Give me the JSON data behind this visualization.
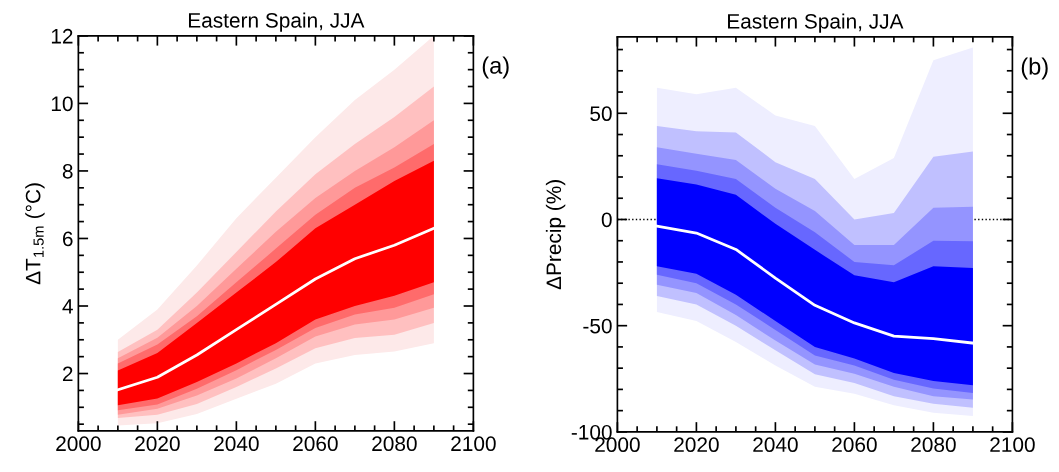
{
  "chart_data": [
    {
      "type": "line",
      "title": "Eastern Spain, JJA",
      "ylabel": "ΔT$_{1.5m}$ (°C)",
      "annotations": [
        "(a)"
      ],
      "x": [
        2010,
        2020,
        2030,
        2040,
        2050,
        2060,
        2070,
        2080,
        2090
      ],
      "xlim": [
        2000,
        2100
      ],
      "xticks": [
        2000,
        2020,
        2040,
        2060,
        2080,
        2100
      ],
      "ylim": [
        0.3,
        12
      ],
      "yticks": [
        2,
        4,
        6,
        8,
        10,
        12
      ],
      "grid": false,
      "legend": false,
      "line_style": "solid",
      "marker": "none",
      "series": [
        {
          "color": "#fde9e9",
          "values": [
            null,
            null,
            null,
            null,
            null,
            null,
            null,
            null,
            null
          ],
          "lower": [
            0.46,
            0.53,
            0.8,
            1.25,
            1.7,
            2.3,
            2.55,
            2.65,
            2.9
          ],
          "upper": [
            3.0,
            3.9,
            5.2,
            6.6,
            7.8,
            9.0,
            10.1,
            11.0,
            12.0
          ]
        },
        {
          "color": "#ffc0c0",
          "values": [
            null,
            null,
            null,
            null,
            null,
            null,
            null,
            null,
            null
          ],
          "lower": [
            0.68,
            0.78,
            1.1,
            1.6,
            2.15,
            2.75,
            3.05,
            3.15,
            3.5
          ],
          "upper": [
            2.64,
            3.3,
            4.4,
            5.6,
            6.8,
            7.9,
            8.8,
            9.6,
            10.5
          ]
        },
        {
          "color": "#ff9999",
          "values": [
            null,
            null,
            null,
            null,
            null,
            null,
            null,
            null,
            null
          ],
          "lower": [
            0.78,
            0.96,
            1.35,
            1.85,
            2.45,
            3.1,
            3.45,
            3.6,
            3.95
          ],
          "upper": [
            2.45,
            3.06,
            4.0,
            5.1,
            6.2,
            7.2,
            8.0,
            8.7,
            9.5
          ]
        },
        {
          "color": "#ff6b6b",
          "values": [
            null,
            null,
            null,
            null,
            null,
            null,
            null,
            null,
            null
          ],
          "lower": [
            0.91,
            1.08,
            1.55,
            2.1,
            2.7,
            3.35,
            3.75,
            3.95,
            4.35
          ],
          "upper": [
            2.3,
            2.86,
            3.7,
            4.7,
            5.7,
            6.7,
            7.5,
            8.1,
            8.8
          ]
        },
        {
          "color": "#ff0000",
          "values": [
            null,
            null,
            null,
            null,
            null,
            null,
            null,
            null,
            null
          ],
          "lower": [
            1.06,
            1.26,
            1.75,
            2.3,
            2.9,
            3.6,
            4.0,
            4.3,
            4.7
          ],
          "upper": [
            2.09,
            2.61,
            3.5,
            4.4,
            5.3,
            6.3,
            7.0,
            7.7,
            8.3
          ]
        },
        {
          "color": "#ffffff",
          "values": [
            1.52,
            1.89,
            2.55,
            3.3,
            4.05,
            4.8,
            5.4,
            5.8,
            6.3
          ]
        }
      ]
    },
    {
      "type": "line",
      "title": "Eastern Spain, JJA",
      "ylabel": "ΔPrecip (%)",
      "annotations": [
        "(b)"
      ],
      "x": [
        2010,
        2020,
        2030,
        2040,
        2050,
        2060,
        2070,
        2080,
        2090
      ],
      "xlim": [
        2000,
        2100
      ],
      "xticks": [
        2000,
        2020,
        2040,
        2060,
        2080,
        2100
      ],
      "ylim": [
        -100,
        86
      ],
      "yticks": [
        -100,
        -50,
        0,
        50
      ],
      "grid": false,
      "legend": false,
      "line_style": "solid",
      "marker": "none",
      "ref_lines": [
        {
          "axis": "y",
          "value": 0,
          "color": "#000000",
          "line_style": "dotted"
        }
      ],
      "series": [
        {
          "color": "#eeeeff",
          "values": [
            null,
            null,
            null,
            null,
            null,
            null,
            null,
            null,
            null
          ],
          "lower": [
            -43.6,
            -47.8,
            -57.7,
            -68.7,
            -78.8,
            -82,
            -87.5,
            -91,
            -92.5
          ],
          "upper": [
            62,
            59,
            62,
            49,
            44,
            19,
            29,
            75,
            81
          ]
        },
        {
          "color": "#c0c0ff",
          "values": [
            null,
            null,
            null,
            null,
            null,
            null,
            null,
            null,
            null
          ],
          "lower": [
            -36,
            -40,
            -50,
            -61.6,
            -72.9,
            -77,
            -83.2,
            -86.7,
            -88.6
          ],
          "upper": [
            44,
            41.5,
            41,
            27,
            19,
            0,
            3,
            29.5,
            32
          ]
        },
        {
          "color": "#9494ff",
          "values": [
            null,
            null,
            null,
            null,
            null,
            null,
            null,
            null,
            null
          ],
          "lower": [
            -30.7,
            -34.6,
            -45,
            -57,
            -68.3,
            -72.6,
            -78.8,
            -83.2,
            -84.8
          ],
          "upper": [
            34,
            31,
            28,
            14.5,
            4,
            -12,
            -12,
            5.5,
            6
          ]
        },
        {
          "color": "#6767ff",
          "values": [
            null,
            null,
            null,
            null,
            null,
            null,
            null,
            null,
            null
          ],
          "lower": [
            -26,
            -30,
            -40,
            -52,
            -64,
            -68.7,
            -75.4,
            -79.6,
            -81.7
          ],
          "upper": [
            26,
            23,
            19,
            5.5,
            -6,
            -20,
            -21.6,
            -10,
            -10.3
          ]
        },
        {
          "color": "#0000ff",
          "values": [
            null,
            null,
            null,
            null,
            null,
            null,
            null,
            null,
            null
          ],
          "lower": [
            -22,
            -25.5,
            -35.4,
            -47.8,
            -60,
            -65.5,
            -72.3,
            -76,
            -78
          ],
          "upper": [
            19.4,
            16.5,
            11.6,
            -2,
            -14.3,
            -26.3,
            -29.5,
            -22,
            -22.9
          ]
        },
        {
          "color": "#ffffff",
          "values": [
            -3.1,
            -6.4,
            -14.1,
            -27.6,
            -40.4,
            -48.7,
            -54.9,
            -56.1,
            -58.2
          ]
        }
      ]
    }
  ]
}
